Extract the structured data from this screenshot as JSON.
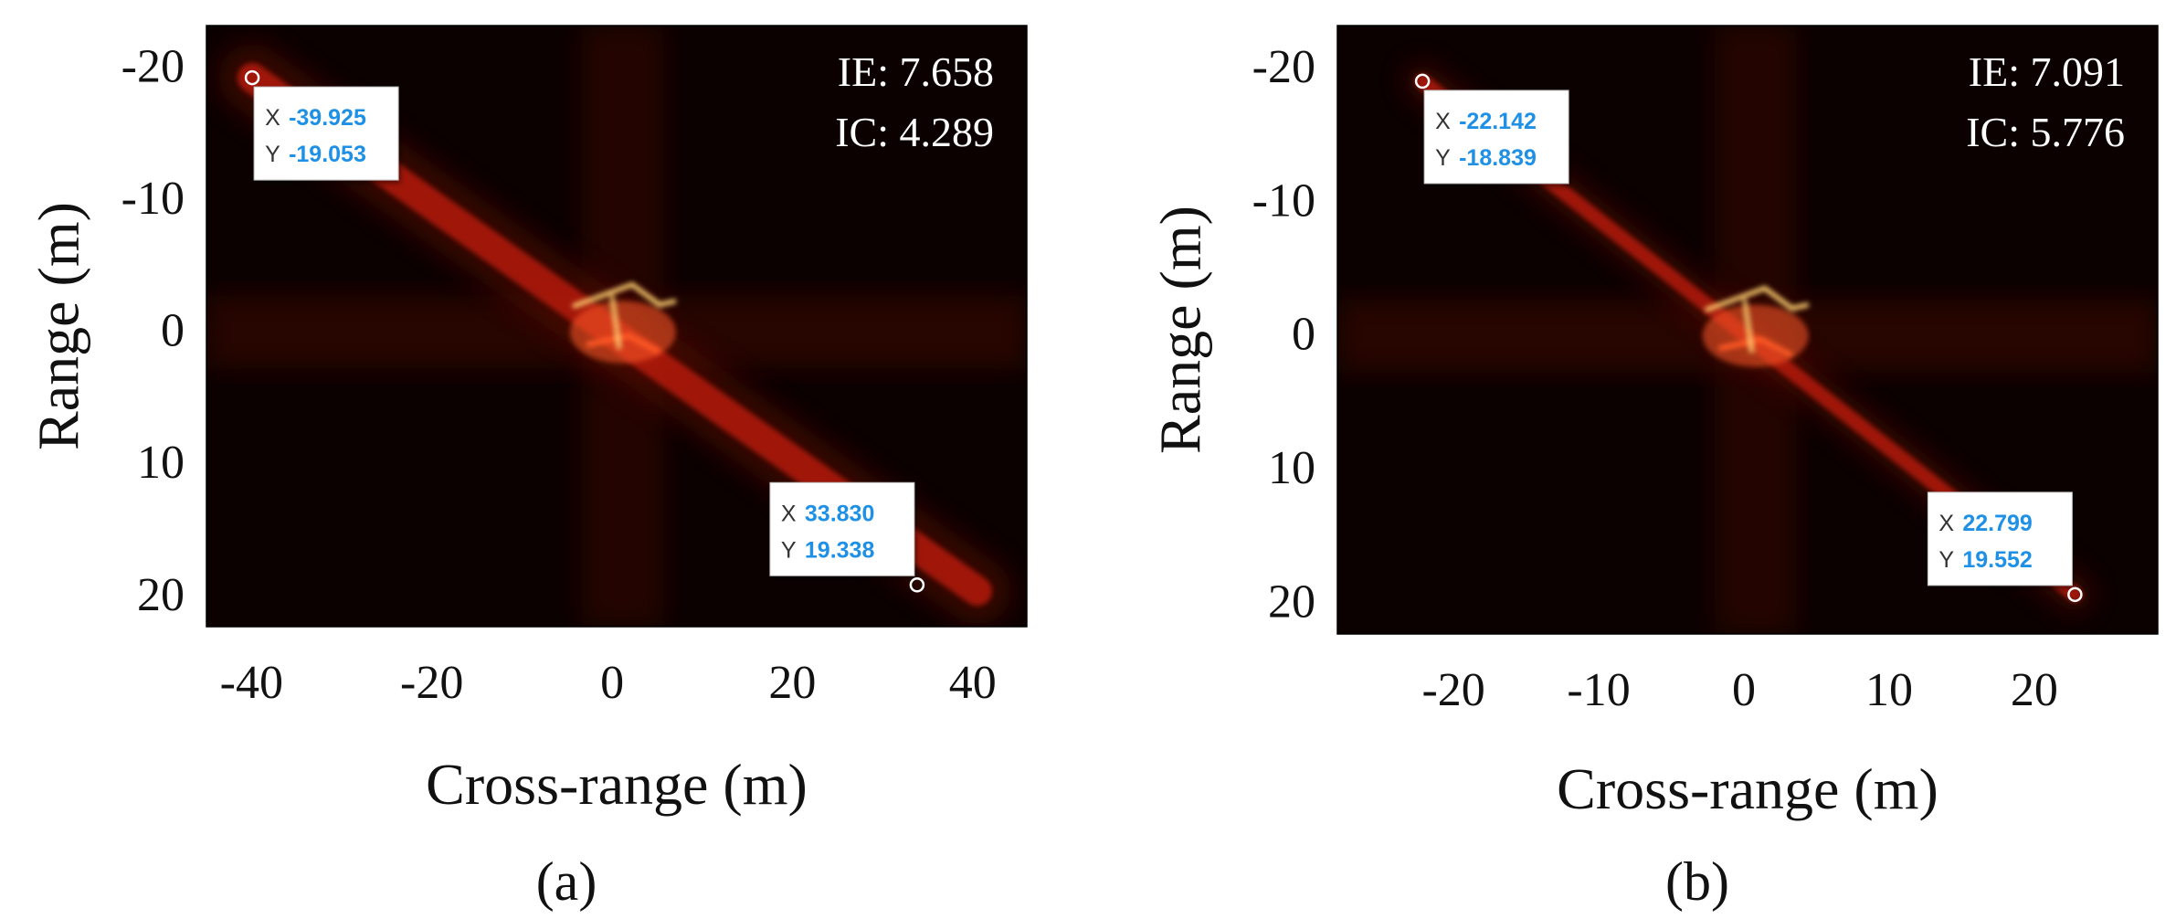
{
  "chart_data": [
    {
      "type": "heatmap",
      "panel_label": "(a)",
      "title": "",
      "xlabel": "Cross-range (m)",
      "ylabel": "Range (m)",
      "xlim": [
        -45,
        46
      ],
      "ylim": [
        -23,
        22.5
      ],
      "y_inverted": true,
      "xticks": [
        -40,
        -20,
        0,
        20,
        40
      ],
      "xtick_labels": [
        "-40",
        "-20",
        "0",
        "20",
        "40"
      ],
      "yticks": [
        -20,
        -10,
        0,
        10,
        20
      ],
      "ytick_labels": [
        "-20",
        "-10",
        "0",
        "10",
        "20"
      ],
      "metrics": [
        {
          "name": "IE",
          "label": "IE: 7.658",
          "value": 7.658
        },
        {
          "name": "IC",
          "label": "IC: 4.289",
          "value": 4.289
        }
      ],
      "datatips": [
        {
          "x": -39.925,
          "y": -19.053,
          "x_label": "X",
          "y_label": "Y",
          "x_text": "-39.925",
          "y_text": "-19.053",
          "placement": "lower-right"
        },
        {
          "x": 33.83,
          "y": 19.338,
          "x_label": "X",
          "y_label": "Y",
          "x_text": "33.830",
          "y_text": "19.338",
          "placement": "upper-left"
        }
      ],
      "streak": {
        "from": [
          -39.925,
          -19.053
        ],
        "to": [
          40.5,
          19.8
        ],
        "half_width": 1.6
      },
      "target": {
        "center": [
          1.2,
          0.2
        ]
      },
      "grid": false,
      "legend": "none"
    },
    {
      "type": "heatmap",
      "panel_label": "(b)",
      "title": "",
      "xlabel": "Cross-range (m)",
      "ylabel": "Range (m)",
      "xlim": [
        -28,
        28.5
      ],
      "ylim": [
        -23,
        22.5
      ],
      "y_inverted": true,
      "xticks": [
        -20,
        -10,
        0,
        10,
        20
      ],
      "xtick_labels": [
        "-20",
        "-10",
        "0",
        "10",
        "20"
      ],
      "yticks": [
        -20,
        -10,
        0,
        10,
        20
      ],
      "ytick_labels": [
        "-20",
        "-10",
        "0",
        "10",
        "20"
      ],
      "metrics": [
        {
          "name": "IE",
          "label": "IE: 7.091",
          "value": 7.091
        },
        {
          "name": "IC",
          "label": "IC: 5.776",
          "value": 5.776
        }
      ],
      "datatips": [
        {
          "x": -22.142,
          "y": -18.839,
          "x_label": "X",
          "y_label": "Y",
          "x_text": "-22.142",
          "y_text": "-18.839",
          "placement": "lower-right"
        },
        {
          "x": 22.799,
          "y": 19.552,
          "x_label": "X",
          "y_label": "Y",
          "x_text": "22.799",
          "y_text": "19.552",
          "placement": "upper-left"
        }
      ],
      "streak": {
        "from": [
          -22.142,
          -18.839
        ],
        "to": [
          22.799,
          19.552
        ],
        "half_width": 0.8
      },
      "target": {
        "center": [
          0.8,
          0.2
        ]
      },
      "grid": false,
      "legend": "none"
    }
  ],
  "colors": {
    "background": "#0c0101",
    "streak_dim": "#5a0804",
    "streak_bright": "#c41a0c",
    "target": "#ff5a28",
    "target_core": "#ffd070",
    "datatip_value": "#1e90e6",
    "datatip_label": "#333333",
    "metric_text": "#ffffff",
    "axis_text": "#111111"
  }
}
